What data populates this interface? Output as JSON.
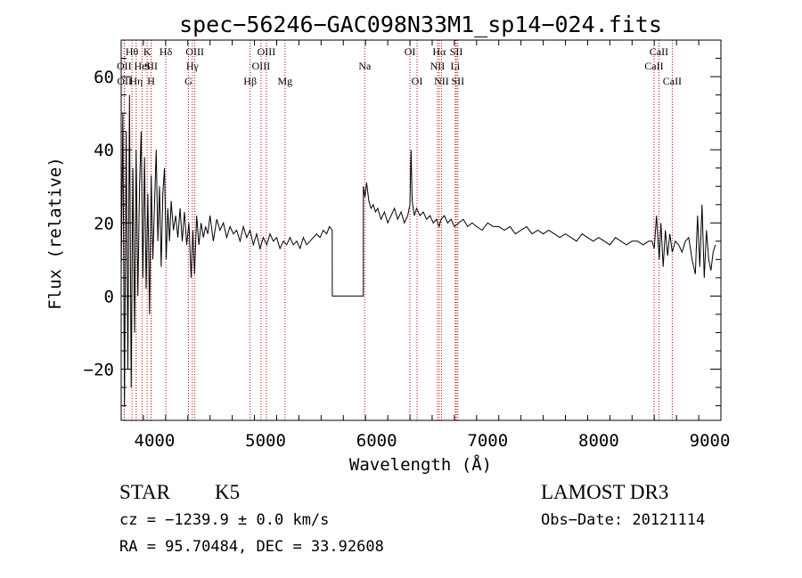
{
  "chart_data": {
    "type": "line",
    "title": "spec−56246−GAC098N33M1_sp14−024.fits",
    "xlabel": "Wavelength (Å)",
    "ylabel": "Flux (relative)",
    "xlim": [
      3700,
      9100
    ],
    "ylim": [
      -34,
      70
    ],
    "x_ticks": [
      4000,
      5000,
      6000,
      7000,
      8000,
      9000
    ],
    "x_tick_labels": [
      "4000",
      "5000",
      "6000",
      "7000",
      "8000",
      "9000"
    ],
    "y_ticks": [
      -20,
      0,
      20,
      40,
      60
    ],
    "y_tick_labels": [
      "−20",
      "0",
      "20",
      "40",
      "60"
    ],
    "grid": false,
    "series": [
      {
        "name": "spectrum",
        "color": "#000000",
        "x": [
          3700,
          3715,
          3730,
          3745,
          3760,
          3775,
          3790,
          3805,
          3820,
          3835,
          3850,
          3865,
          3880,
          3895,
          3910,
          3925,
          3940,
          3955,
          3970,
          3985,
          4000,
          4015,
          4030,
          4045,
          4060,
          4075,
          4090,
          4105,
          4120,
          4135,
          4150,
          4170,
          4190,
          4210,
          4230,
          4250,
          4270,
          4290,
          4310,
          4330,
          4345,
          4360,
          4380,
          4400,
          4420,
          4440,
          4460,
          4480,
          4500,
          4530,
          4560,
          4590,
          4620,
          4650,
          4680,
          4710,
          4740,
          4770,
          4800,
          4830,
          4860,
          4890,
          4920,
          4950,
          4980,
          5010,
          5040,
          5070,
          5100,
          5130,
          5160,
          5190,
          5220,
          5250,
          5280,
          5310,
          5340,
          5370,
          5400,
          5430,
          5460,
          5490,
          5520,
          5550,
          5575,
          5600,
          5601,
          5700,
          5800,
          5880,
          5881,
          5895,
          5910,
          5930,
          5950,
          5970,
          5990,
          6010,
          6040,
          6070,
          6100,
          6130,
          6160,
          6190,
          6220,
          6250,
          6280,
          6300,
          6310,
          6320,
          6340,
          6360,
          6390,
          6420,
          6450,
          6480,
          6510,
          6540,
          6563,
          6580,
          6610,
          6640,
          6670,
          6700,
          6740,
          6780,
          6820,
          6860,
          6900,
          6950,
          7000,
          7050,
          7100,
          7150,
          7200,
          7250,
          7300,
          7350,
          7400,
          7450,
          7500,
          7550,
          7600,
          7650,
          7700,
          7750,
          7800,
          7850,
          7900,
          7950,
          8000,
          8050,
          8100,
          8150,
          8200,
          8250,
          8300,
          8350,
          8400,
          8450,
          8480,
          8500,
          8520,
          8545,
          8560,
          8580,
          8600,
          8620,
          8640,
          8662,
          8690,
          8720,
          8750,
          8780,
          8810,
          8840,
          8870,
          8890,
          8910,
          8930,
          8950,
          8970,
          8990,
          9010,
          9030,
          9050
        ],
        "y": [
          5,
          50,
          -30,
          45,
          -20,
          55,
          -25,
          35,
          -10,
          40,
          0,
          30,
          45,
          5,
          38,
          2,
          28,
          -5,
          33,
          10,
          25,
          40,
          15,
          30,
          8,
          28,
          35,
          10,
          24,
          15,
          26,
          18,
          22,
          16,
          24,
          15,
          23,
          14,
          20,
          5,
          18,
          6,
          22,
          14,
          20,
          16,
          19,
          17,
          22,
          15,
          21,
          18,
          20,
          16,
          19,
          17,
          18,
          15,
          19,
          16,
          18,
          14,
          17,
          13,
          16,
          14,
          17,
          15,
          16,
          13,
          15,
          14,
          16,
          14,
          15,
          13,
          16,
          14,
          15,
          16,
          17,
          16,
          18,
          17,
          19,
          18,
          0,
          0,
          0,
          0,
          30,
          27,
          31,
          26,
          24,
          25,
          23,
          24,
          21,
          23,
          20,
          22,
          24,
          21,
          23,
          20,
          22,
          25,
          40,
          26,
          22,
          24,
          22,
          23,
          21,
          22,
          20,
          21,
          19,
          21,
          22,
          20,
          21,
          19,
          20,
          21,
          19,
          20,
          19,
          18,
          20,
          19,
          19,
          18,
          19,
          17,
          18,
          19,
          17,
          18,
          17,
          18,
          17,
          16,
          17,
          16,
          15,
          17,
          16,
          15,
          16,
          15,
          14,
          16,
          15,
          14,
          15,
          15,
          14,
          15,
          15,
          13,
          22,
          10,
          20,
          8,
          18,
          11,
          17,
          12,
          15,
          14,
          12,
          15,
          16,
          10,
          6,
          22,
          8,
          25,
          5,
          18,
          10,
          7,
          12,
          14
        ]
      }
    ],
    "annotations": [
      {
        "label": "Hθ",
        "x": 3797,
        "row": 1
      },
      {
        "label": "OII",
        "x": 3727,
        "row": 2
      },
      {
        "label": "OII",
        "x": 3730,
        "row": 3
      },
      {
        "label": "Hη",
        "x": 3835,
        "row": 3
      },
      {
        "label": "K",
        "x": 3934,
        "row": 1
      },
      {
        "label": "HeI",
        "x": 3889,
        "row": 2
      },
      {
        "label": "SII",
        "x": 3970,
        "row": 2
      },
      {
        "label": "H",
        "x": 3969,
        "row": 3
      },
      {
        "label": "Hδ",
        "x": 4102,
        "row": 1
      },
      {
        "label": "OIII",
        "x": 4363,
        "row": 1
      },
      {
        "label": "Hγ",
        "x": 4341,
        "row": 2
      },
      {
        "label": "G",
        "x": 4305,
        "row": 3
      },
      {
        "label": "Hβ",
        "x": 4861,
        "row": 3
      },
      {
        "label": "OIII",
        "x": 5007,
        "row": 1
      },
      {
        "label": "OIII",
        "x": 4959,
        "row": 2
      },
      {
        "label": "Mg",
        "x": 5175,
        "row": 3
      },
      {
        "label": "Na",
        "x": 5893,
        "row": 2
      },
      {
        "label": "OI",
        "x": 6300,
        "row": 1
      },
      {
        "label": "OI",
        "x": 6364,
        "row": 3
      },
      {
        "label": "Hα",
        "x": 6563,
        "row": 1
      },
      {
        "label": "NII",
        "x": 6548,
        "row": 2
      },
      {
        "label": "NII",
        "x": 6584,
        "row": 3
      },
      {
        "label": "SII",
        "x": 6717,
        "row": 1
      },
      {
        "label": "Li",
        "x": 6708,
        "row": 2
      },
      {
        "label": "SII",
        "x": 6731,
        "row": 3
      },
      {
        "label": "CaII",
        "x": 8542,
        "row": 1
      },
      {
        "label": "CaII",
        "x": 8498,
        "row": 2
      },
      {
        "label": "CaII",
        "x": 8662,
        "row": 3
      }
    ],
    "line_color": "#cc0000"
  },
  "info": {
    "class": "STAR",
    "subclass": "K5",
    "survey": "LAMOST DR3",
    "cz": "cz = −1239.9 ± 0.0 km/s",
    "obs_date": "Obs−Date: 20121114",
    "coords": "RA =  95.70484, DEC =  33.92608"
  }
}
